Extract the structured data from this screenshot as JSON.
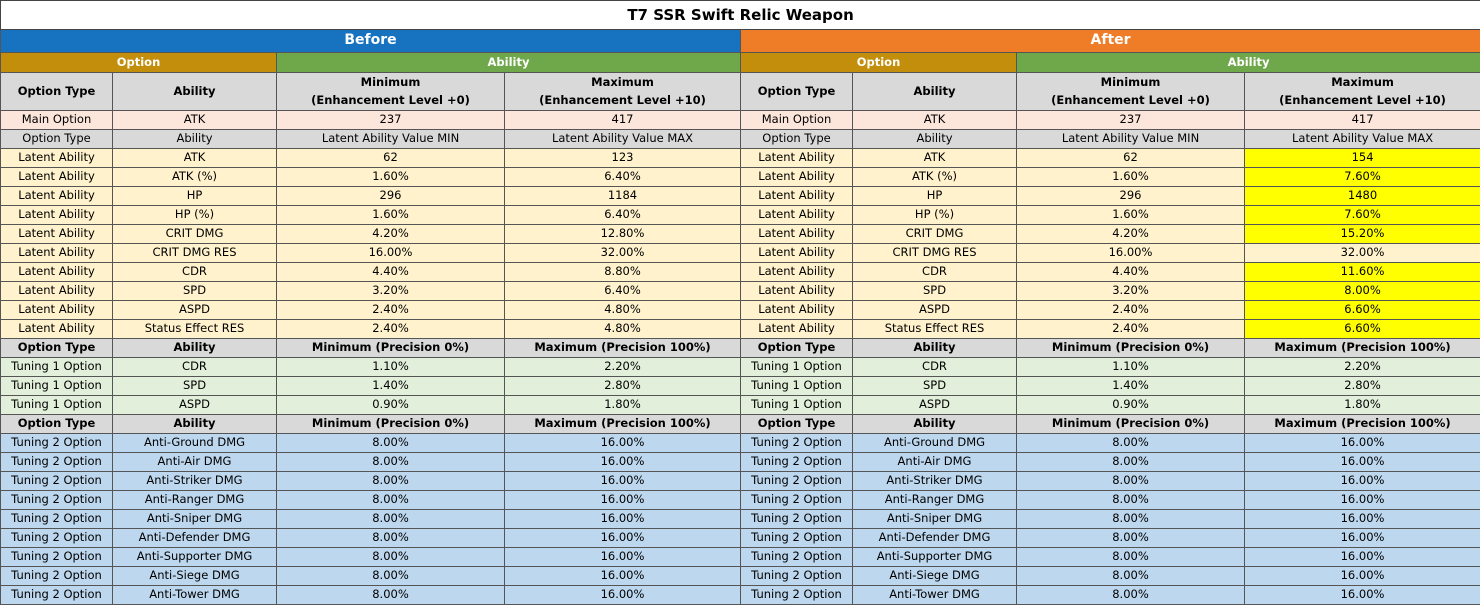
{
  "title": "T7 SSR Swift Relic Weapon",
  "sections": {
    "before": "Before",
    "after": "After"
  },
  "groups": {
    "option": "Option",
    "ability": "Ability"
  },
  "col_headers": {
    "option_type": "Option Type",
    "ability": "Ability",
    "minimum": "Minimum",
    "minimum_sub": "(Enhancement Level +0)",
    "maximum": "Maximum",
    "maximum_sub": "(Enhancement Level +10)"
  },
  "main_option": {
    "type": "Main Option",
    "ability": "ATK",
    "min": "237",
    "max": "417"
  },
  "latent_header": {
    "type": "Option Type",
    "ability": "Ability",
    "min": "Latent Ability Value MIN",
    "max": "Latent Ability Value MAX"
  },
  "latent_label": "Latent Ability",
  "latent_rows": [
    {
      "ability": "ATK",
      "before_min": "62",
      "before_max": "123",
      "after_min": "62",
      "after_max": "154",
      "after_max_highlight": true
    },
    {
      "ability": "ATK (%)",
      "before_min": "1.60%",
      "before_max": "6.40%",
      "after_min": "1.60%",
      "after_max": "7.60%",
      "after_max_highlight": true
    },
    {
      "ability": "HP",
      "before_min": "296",
      "before_max": "1184",
      "after_min": "296",
      "after_max": "1480",
      "after_max_highlight": true
    },
    {
      "ability": "HP (%)",
      "before_min": "1.60%",
      "before_max": "6.40%",
      "after_min": "1.60%",
      "after_max": "7.60%",
      "after_max_highlight": true
    },
    {
      "ability": "CRIT DMG",
      "before_min": "4.20%",
      "before_max": "12.80%",
      "after_min": "4.20%",
      "after_max": "15.20%",
      "after_max_highlight": true
    },
    {
      "ability": "CRIT DMG RES",
      "before_min": "16.00%",
      "before_max": "32.00%",
      "after_min": "16.00%",
      "after_max": "32.00%",
      "after_max_highlight": false
    },
    {
      "ability": "CDR",
      "before_min": "4.40%",
      "before_max": "8.80%",
      "after_min": "4.40%",
      "after_max": "11.60%",
      "after_max_highlight": true
    },
    {
      "ability": "SPD",
      "before_min": "3.20%",
      "before_max": "6.40%",
      "after_min": "3.20%",
      "after_max": "8.00%",
      "after_max_highlight": true
    },
    {
      "ability": "ASPD",
      "before_min": "2.40%",
      "before_max": "4.80%",
      "after_min": "2.40%",
      "after_max": "6.60%",
      "after_max_highlight": true
    },
    {
      "ability": "Status Effect RES",
      "before_min": "2.40%",
      "before_max": "4.80%",
      "after_min": "2.40%",
      "after_max": "6.60%",
      "after_max_highlight": true
    }
  ],
  "tuning_header": {
    "type": "Option Type",
    "ability": "Ability",
    "min": "Minimum (Precision 0%)",
    "max": "Maximum (Precision 100%)"
  },
  "tuning1_label": "Tuning 1 Option",
  "tuning1_rows": [
    {
      "ability": "CDR",
      "min": "1.10%",
      "max": "2.20%"
    },
    {
      "ability": "SPD",
      "min": "1.40%",
      "max": "2.80%"
    },
    {
      "ability": "ASPD",
      "min": "0.90%",
      "max": "1.80%"
    }
  ],
  "tuning2_label": "Tuning 2 Option",
  "tuning2_rows": [
    {
      "ability": "Anti-Ground DMG",
      "min": "8.00%",
      "max": "16.00%"
    },
    {
      "ability": "Anti-Air DMG",
      "min": "8.00%",
      "max": "16.00%"
    },
    {
      "ability": "Anti-Striker DMG",
      "min": "8.00%",
      "max": "16.00%"
    },
    {
      "ability": "Anti-Ranger DMG",
      "min": "8.00%",
      "max": "16.00%"
    },
    {
      "ability": "Anti-Sniper DMG",
      "min": "8.00%",
      "max": "16.00%"
    },
    {
      "ability": "Anti-Defender DMG",
      "min": "8.00%",
      "max": "16.00%"
    },
    {
      "ability": "Anti-Supporter DMG",
      "min": "8.00%",
      "max": "16.00%"
    },
    {
      "ability": "Anti-Siege DMG",
      "min": "8.00%",
      "max": "16.00%"
    },
    {
      "ability": "Anti-Tower DMG",
      "min": "8.00%",
      "max": "16.00%"
    }
  ],
  "colors": {
    "before": "#1772c0",
    "after": "#ef7d28",
    "option_group": "#c28e0c",
    "ability_group": "#6ea84b",
    "highlight": "#ffff00",
    "latent_row": "#fff2cc",
    "tuning1_row": "#e2efda",
    "tuning2_row": "#bdd7ee"
  }
}
